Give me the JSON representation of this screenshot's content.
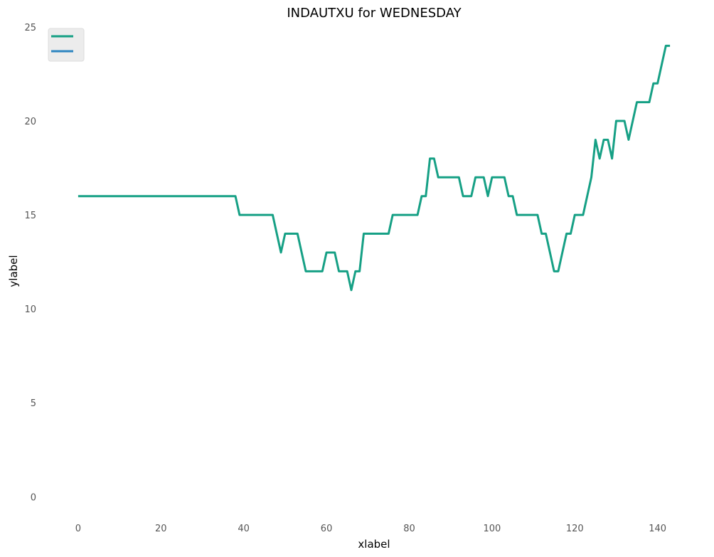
{
  "chart_data": {
    "type": "line",
    "title": "INDAUTXU for WEDNESDAY",
    "xlabel": "xlabel",
    "ylabel": "ylabel",
    "xlim": [
      -7.2,
      150.2
    ],
    "ylim": [
      -1.2,
      25
    ],
    "xticks": [
      0,
      20,
      40,
      60,
      80,
      100,
      120,
      140
    ],
    "yticks": [
      0,
      5,
      10,
      15,
      20,
      25
    ],
    "grid": false,
    "legend": "top-left",
    "series": [
      {
        "color": "#16a085",
        "x": [
          0,
          1,
          2,
          3,
          4,
          5,
          6,
          7,
          8,
          9,
          10,
          11,
          12,
          13,
          14,
          15,
          16,
          17,
          18,
          19,
          20,
          21,
          22,
          23,
          24,
          25,
          26,
          27,
          28,
          29,
          30,
          31,
          32,
          33,
          34,
          35,
          36,
          37,
          38,
          39,
          40,
          41,
          42,
          43,
          44,
          45,
          46,
          47,
          48,
          49,
          50,
          51,
          52,
          53,
          54,
          55,
          56,
          57,
          58,
          59,
          60,
          61,
          62,
          63,
          64,
          65,
          66,
          67,
          68,
          69,
          70,
          71,
          72,
          73,
          74,
          75,
          76,
          77,
          78,
          79,
          80,
          81,
          82,
          83,
          84,
          85,
          86,
          87,
          88,
          89,
          90,
          91,
          92,
          93,
          94,
          95,
          96,
          97,
          98,
          99,
          100,
          101,
          102,
          103,
          104,
          105,
          106,
          107,
          108,
          109,
          110,
          111,
          112,
          113,
          114,
          115,
          116,
          117,
          118,
          119,
          120,
          121,
          122,
          123,
          124,
          125,
          126,
          127,
          128,
          129,
          130,
          131,
          132,
          133,
          134,
          135,
          136,
          137,
          138,
          139,
          140,
          141,
          142,
          143
        ],
        "y": [
          16,
          16,
          16,
          16,
          16,
          16,
          16,
          16,
          16,
          16,
          16,
          16,
          16,
          16,
          16,
          16,
          16,
          16,
          16,
          16,
          16,
          16,
          16,
          16,
          16,
          16,
          16,
          16,
          16,
          16,
          16,
          16,
          16,
          16,
          16,
          16,
          16,
          16,
          16,
          15,
          15,
          15,
          15,
          15,
          15,
          15,
          15,
          15,
          14,
          13,
          14,
          14,
          14,
          14,
          13,
          12,
          12,
          12,
          12,
          12,
          13,
          13,
          13,
          12,
          12,
          12,
          11,
          12,
          12,
          14,
          14,
          14,
          14,
          14,
          14,
          14,
          15,
          15,
          15,
          15,
          15,
          15,
          15,
          16,
          16,
          18,
          18,
          17,
          17,
          17,
          17,
          17,
          17,
          16,
          16,
          16,
          17,
          17,
          17,
          16,
          17,
          17,
          17,
          17,
          16,
          16,
          15,
          15,
          15,
          15,
          15,
          15,
          14,
          14,
          13,
          12,
          12,
          13,
          14,
          14,
          15,
          15,
          15,
          16,
          17,
          19,
          18,
          19,
          19,
          18,
          20,
          20,
          20,
          19,
          20,
          21,
          21,
          21,
          21,
          22,
          22,
          23,
          24,
          24
        ]
      },
      {
        "color": "#2e86c1",
        "x": [],
        "y": []
      }
    ]
  }
}
